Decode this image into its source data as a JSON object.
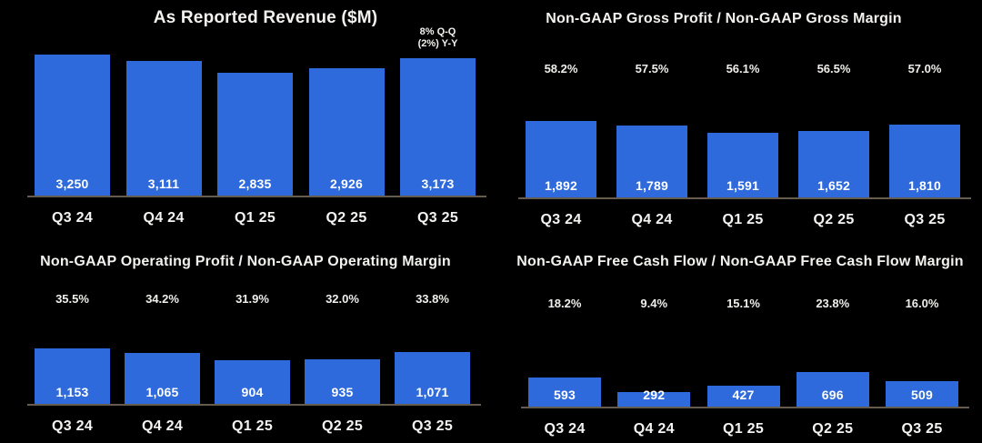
{
  "page": {
    "background": "#000000"
  },
  "colors": {
    "bar": "#2e6adb",
    "text": "#f3f2ef",
    "value_text": "#ffffff",
    "baseline": "#665c4e"
  },
  "chart_data": [
    {
      "type": "bar",
      "title": "As Reported Revenue ($M)",
      "categories": [
        "Q3 24",
        "Q4 24",
        "Q1 25",
        "Q2 25",
        "Q3 25"
      ],
      "values": [
        3250,
        3111,
        2835,
        2926,
        3173
      ],
      "value_labels": [
        "3,250",
        "3,111",
        "2,835",
        "2,926",
        "3,173"
      ],
      "annotation": {
        "line1": "8% Q-Q",
        "line2": "(2%) Y-Y"
      },
      "xlabel": "",
      "ylabel": "",
      "ylim": [
        0,
        3250
      ],
      "grid": false,
      "legend": null
    },
    {
      "type": "bar",
      "title": "Non-GAAP Gross Profit / Non-GAAP Gross Margin",
      "categories": [
        "Q3 24",
        "Q4 24",
        "Q1 25",
        "Q2 25",
        "Q3 25"
      ],
      "values": [
        1892,
        1789,
        1591,
        1652,
        1810
      ],
      "value_labels": [
        "1,892",
        "1,789",
        "1,591",
        "1,652",
        "1,810"
      ],
      "margins": [
        "58.2%",
        "57.5%",
        "56.1%",
        "56.5%",
        "57.0%"
      ],
      "xlabel": "",
      "ylabel": "",
      "ylim": [
        0,
        1892
      ],
      "grid": false,
      "legend": null
    },
    {
      "type": "bar",
      "title": "Non-GAAP Operating Profit / Non-GAAP Operating Margin",
      "categories": [
        "Q3 24",
        "Q4 24",
        "Q1 25",
        "Q2 25",
        "Q3 25"
      ],
      "values": [
        1153,
        1065,
        904,
        935,
        1071
      ],
      "value_labels": [
        "1,153",
        "1,065",
        "904",
        "935",
        "1,071"
      ],
      "margins": [
        "35.5%",
        "34.2%",
        "31.9%",
        "32.0%",
        "33.8%"
      ],
      "xlabel": "",
      "ylabel": "",
      "ylim": [
        0,
        1153
      ],
      "grid": false,
      "legend": null
    },
    {
      "type": "bar",
      "title": "Non-GAAP Free Cash Flow / Non-GAAP Free Cash Flow Margin",
      "categories": [
        "Q3 24",
        "Q4 24",
        "Q1 25",
        "Q2 25",
        "Q3 25"
      ],
      "values": [
        593,
        292,
        427,
        696,
        509
      ],
      "value_labels": [
        "593",
        "292",
        "427",
        "696",
        "509"
      ],
      "margins": [
        "18.2%",
        "9.4%",
        "15.1%",
        "23.8%",
        "16.0%"
      ],
      "xlabel": "",
      "ylabel": "",
      "ylim": [
        0,
        696
      ],
      "grid": false,
      "legend": null
    }
  ]
}
